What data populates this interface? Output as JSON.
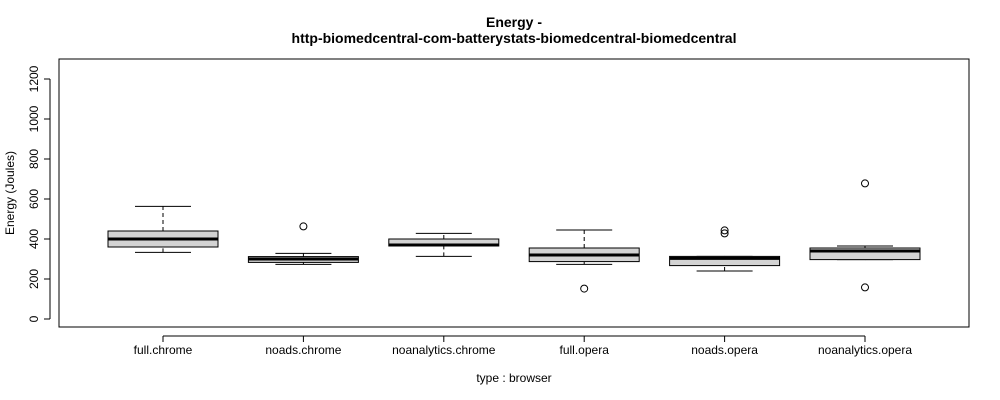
{
  "chart_data": {
    "type": "box",
    "title": "Energy -",
    "subtitle": "http-biomedcentral-com-batterystats-biomedcentral-biomedcentral",
    "xlabel": "type : browser",
    "ylabel": "Energy (Joules)",
    "ylim": [
      -40,
      1300
    ],
    "yticks": [
      0,
      200,
      400,
      600,
      800,
      1000,
      1200
    ],
    "grid": false,
    "box_fill": "#d3d3d3",
    "categories": [
      "full.chrome",
      "noads.chrome",
      "noanalytics.chrome",
      "full.opera",
      "noads.opera",
      "noanalytics.opera"
    ],
    "boxes": [
      {
        "min": 333,
        "q1": 360,
        "median": 400,
        "q3": 440,
        "max": 563,
        "outliers": []
      },
      {
        "min": 273,
        "q1": 283,
        "median": 300,
        "q3": 312,
        "max": 328,
        "outliers": [
          463
        ]
      },
      {
        "min": 313,
        "q1": 365,
        "median": 370,
        "q3": 400,
        "max": 428,
        "outliers": []
      },
      {
        "min": 273,
        "q1": 287,
        "median": 320,
        "q3": 355,
        "max": 445,
        "outliers": [
          152
        ]
      },
      {
        "min": 240,
        "q1": 267,
        "median": 303,
        "q3": 313,
        "max": 313,
        "outliers": [
          428,
          443
        ]
      },
      {
        "min": 297,
        "q1": 297,
        "median": 340,
        "q3": 355,
        "max": 365,
        "outliers": [
          678,
          158
        ]
      }
    ]
  }
}
